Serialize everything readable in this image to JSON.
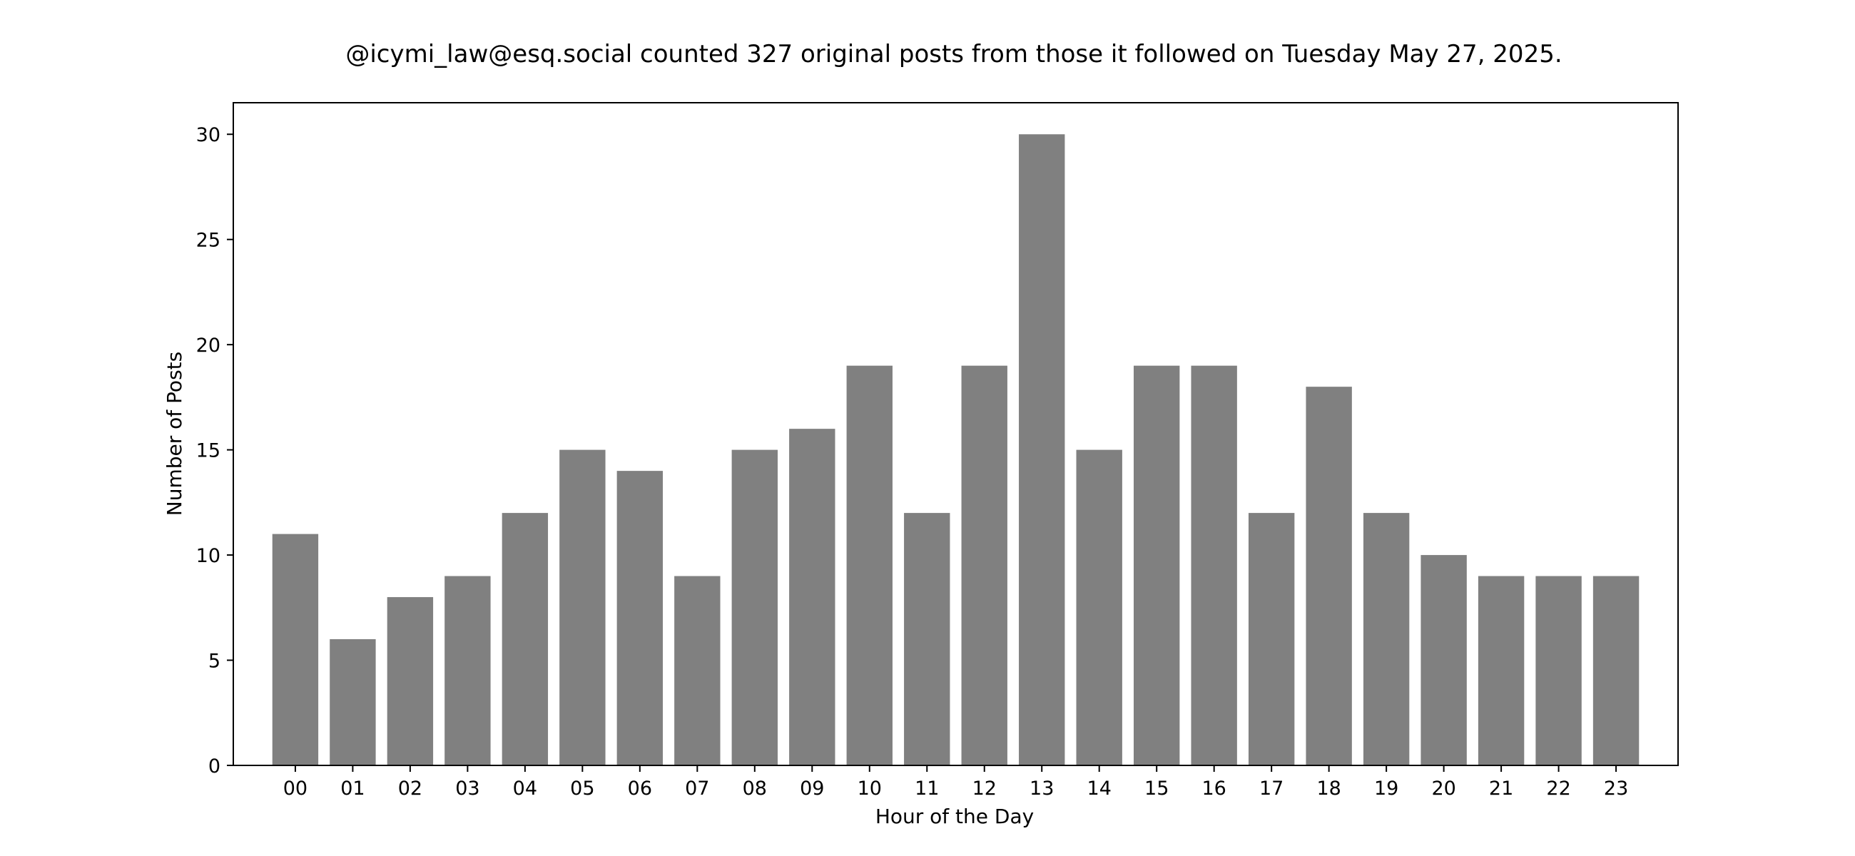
{
  "chart_data": {
    "type": "bar",
    "title": "@icymi_law@esq.social counted 327 original posts from those it followed on Tuesday May 27, 2025.",
    "xlabel": "Hour of the Day",
    "ylabel": "Number of Posts",
    "categories": [
      "00",
      "01",
      "02",
      "03",
      "04",
      "05",
      "06",
      "07",
      "08",
      "09",
      "10",
      "11",
      "12",
      "13",
      "14",
      "15",
      "16",
      "17",
      "18",
      "19",
      "20",
      "21",
      "22",
      "23"
    ],
    "values": [
      11,
      6,
      8,
      9,
      12,
      15,
      14,
      9,
      15,
      16,
      19,
      12,
      19,
      30,
      15,
      19,
      19,
      12,
      18,
      12,
      10,
      9,
      9,
      9
    ],
    "ylim": [
      0,
      31.5
    ],
    "yticks": [
      0,
      5,
      10,
      15,
      20,
      25,
      30
    ],
    "grid": false,
    "legend": "none",
    "bar_color": "#808080"
  }
}
